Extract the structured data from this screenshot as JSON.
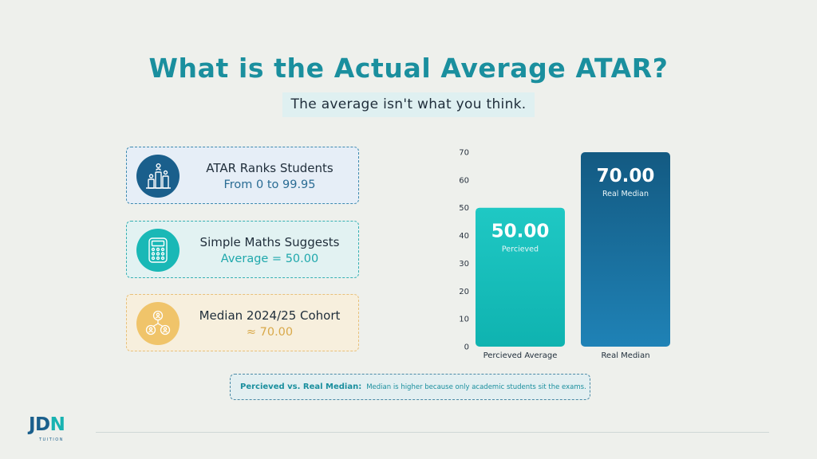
{
  "header": {
    "title": "What is the Actual Average ATAR?",
    "subtitle": "The average isn't what you think."
  },
  "cards": [
    {
      "line1": "ATAR Ranks Students",
      "line2": "From 0 to 99.95",
      "icon": "ranking-bars-icon"
    },
    {
      "line1": "Simple Maths Suggests",
      "line2": "Average = 50.00",
      "icon": "calculator-icon"
    },
    {
      "line1": "Median 2024/25 Cohort",
      "line2": "≈ 70.00",
      "icon": "people-network-icon"
    }
  ],
  "note": {
    "label": "Percieved vs. Real Median:",
    "text": "Median is higher because only academic students sit the exams."
  },
  "logo": {
    "text_a": "JD",
    "text_b": "N",
    "sub": "TUITION"
  },
  "colors": {
    "accent": "#1a8f9e",
    "bar1_top": "#1fc8c4",
    "bar1_bottom": "#0fb3b0",
    "bar2_top": "#135a82",
    "bar2_bottom": "#1f82b6"
  },
  "chart_data": {
    "type": "bar",
    "categories": [
      "Percieved Average",
      "Real Median"
    ],
    "values": [
      50,
      70
    ],
    "data_labels": [
      "50.00",
      "70.00"
    ],
    "bar_sublabels": [
      "Percieved",
      "Real Median"
    ],
    "ylim": [
      0,
      70
    ],
    "yticks": [
      "0",
      "10",
      "20",
      "30",
      "40",
      "50",
      "60",
      "70"
    ],
    "grid": false
  }
}
